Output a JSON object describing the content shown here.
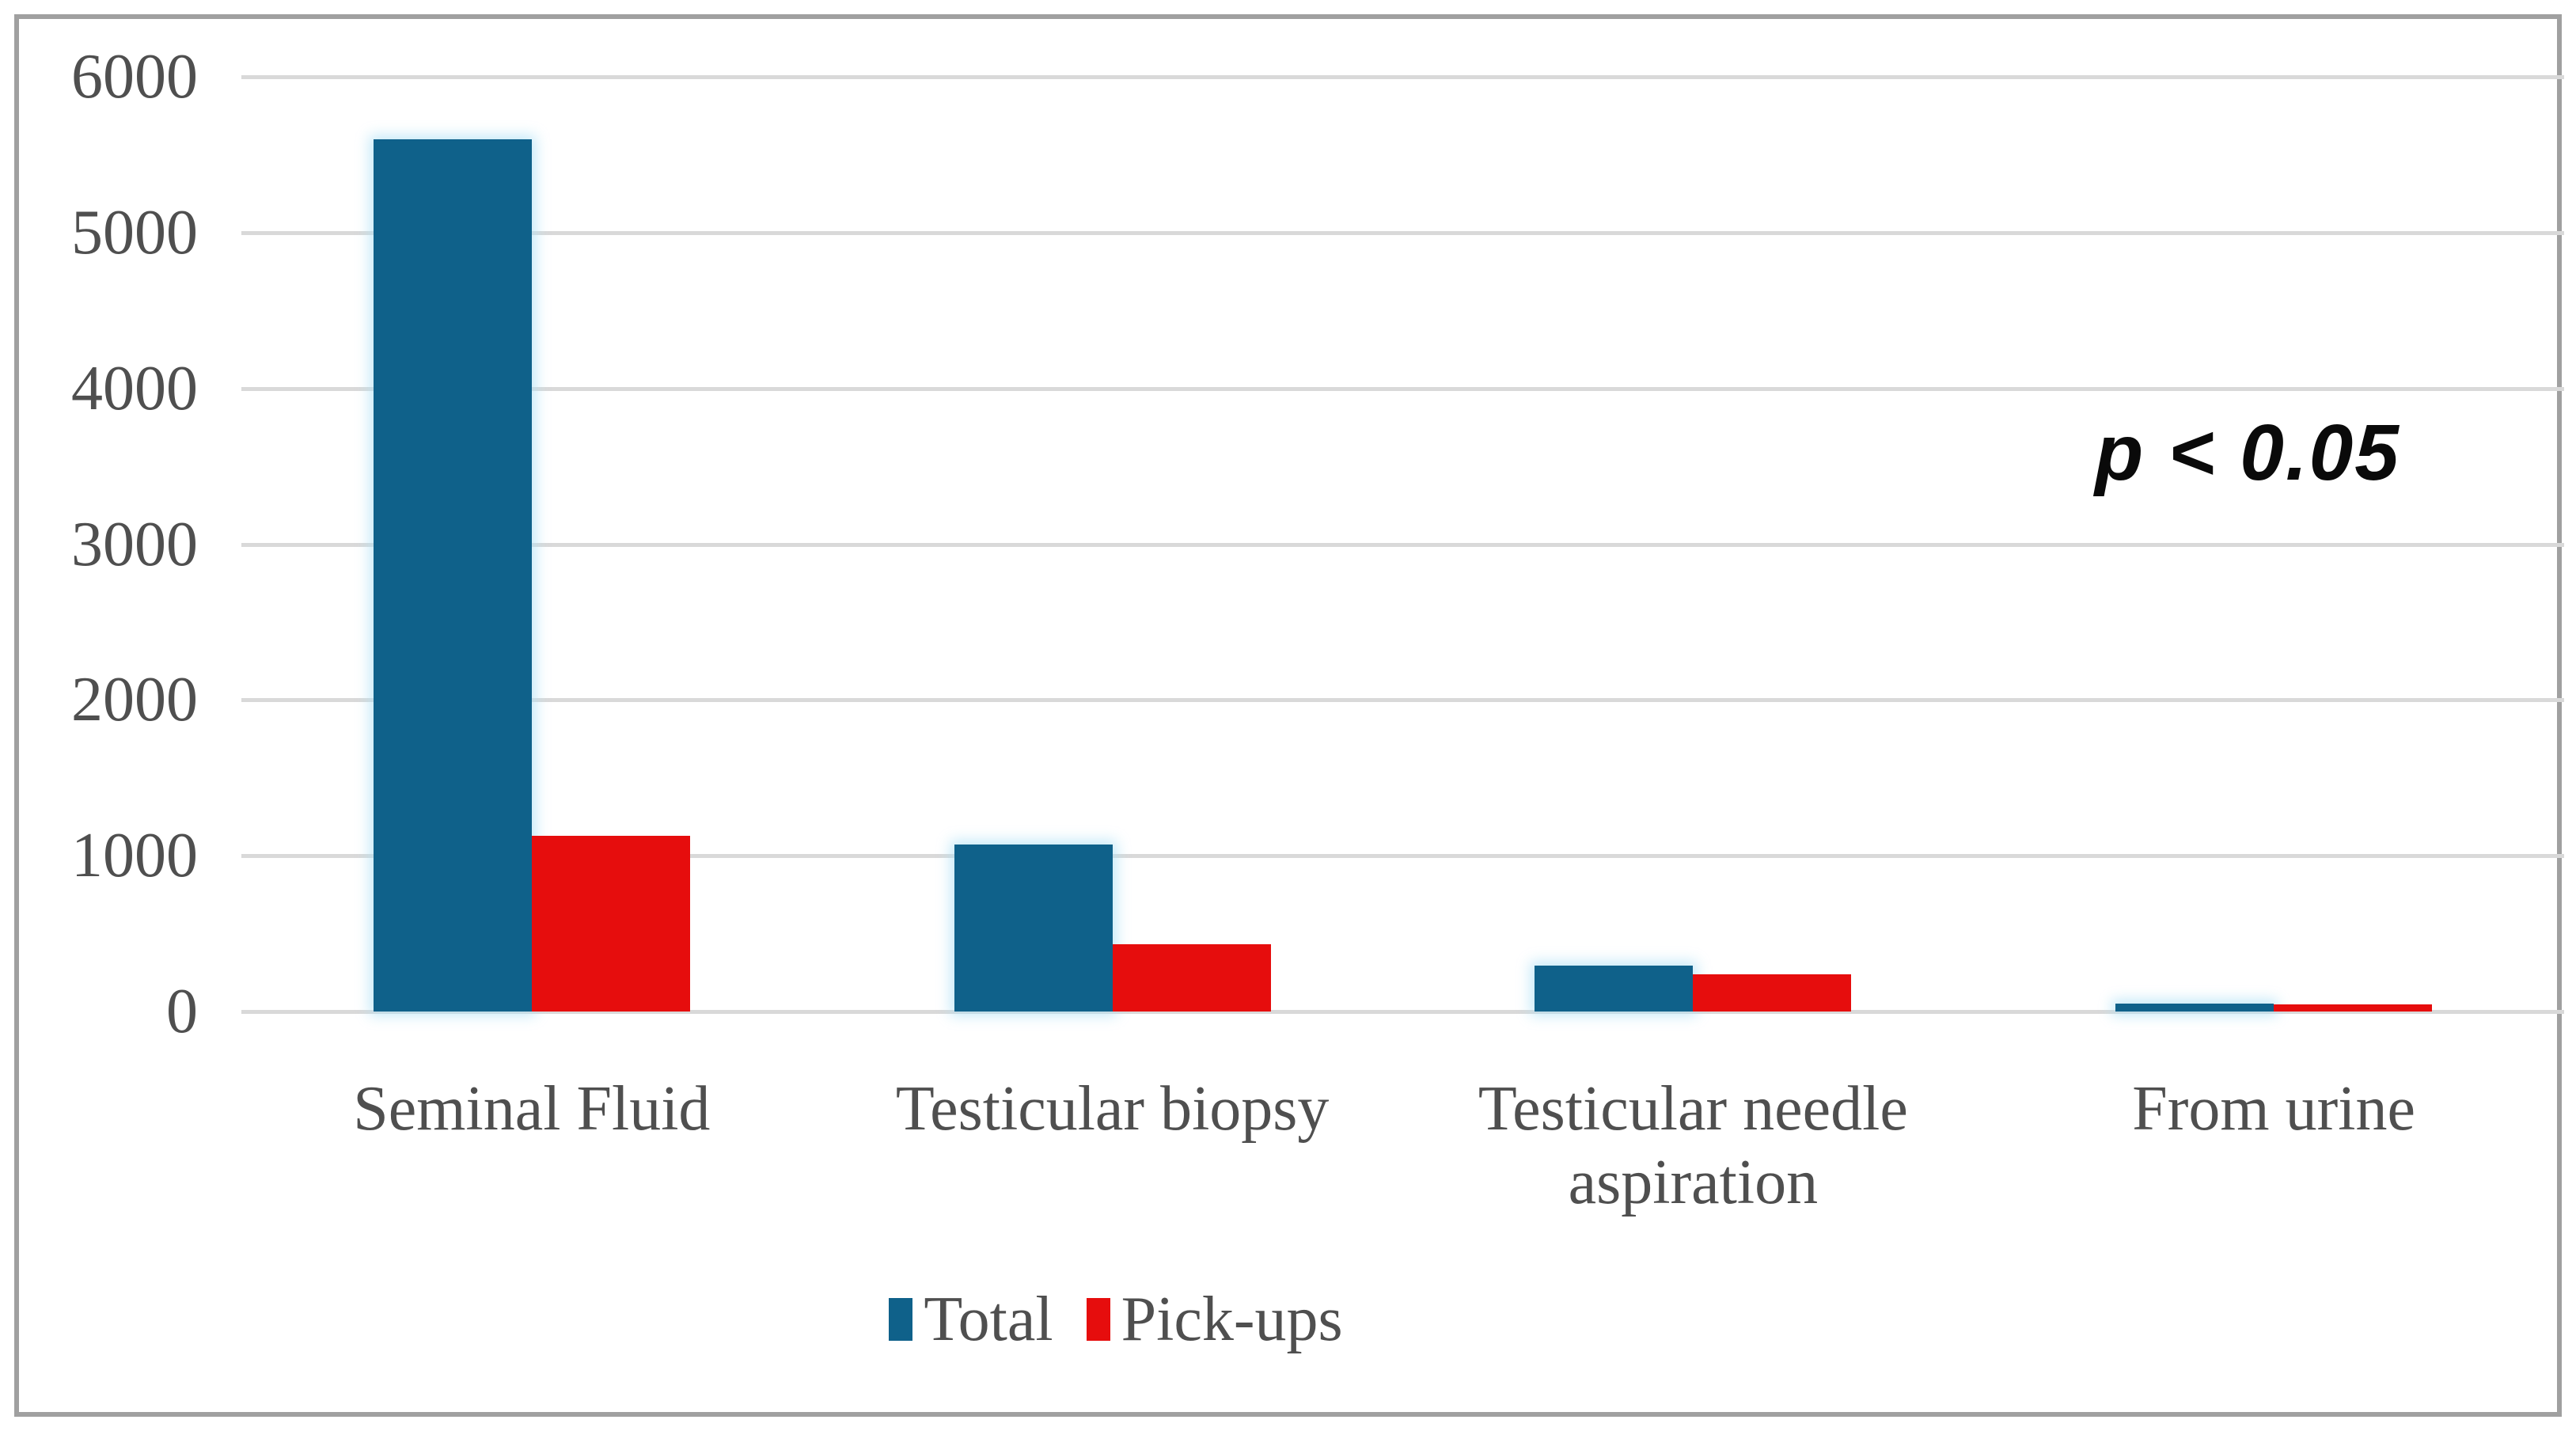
{
  "chart_data": {
    "type": "bar",
    "title": "",
    "xlabel": "",
    "ylabel": "",
    "categories": [
      "Seminal Fluid",
      "Testicular biopsy",
      "Testicular needle aspiration",
      "From urine"
    ],
    "series": [
      {
        "name": "Total",
        "color": "#0f618a",
        "values": [
          5600,
          1070,
          295,
          50
        ]
      },
      {
        "name": "Pick-ups",
        "color": "#e60d0d",
        "values": [
          1130,
          430,
          240,
          48
        ]
      }
    ],
    "ylim": [
      0,
      6000
    ],
    "yticks": [
      0,
      1000,
      2000,
      3000,
      4000,
      5000,
      6000
    ],
    "ytick_labels": [
      "0",
      "1000",
      "2000",
      "3000",
      "4000",
      "5000",
      "6000"
    ],
    "grid": true,
    "legend_position": "bottom-center",
    "annotation": "p < 0.05"
  },
  "legend": {
    "items": [
      {
        "label": "Total",
        "color": "#0f618a"
      },
      {
        "label": "Pick-ups",
        "color": "#e60d0d"
      }
    ]
  },
  "styles": {
    "grid_color": "#d9d9d9",
    "text_color": "#4f4f4f",
    "annotation_color": "#0a0a0a",
    "frame_border_color": "#a0a0a0",
    "background": "#ffffff",
    "total_bar_color": "#0f618a",
    "pickups_bar_color": "#e60d0d"
  }
}
